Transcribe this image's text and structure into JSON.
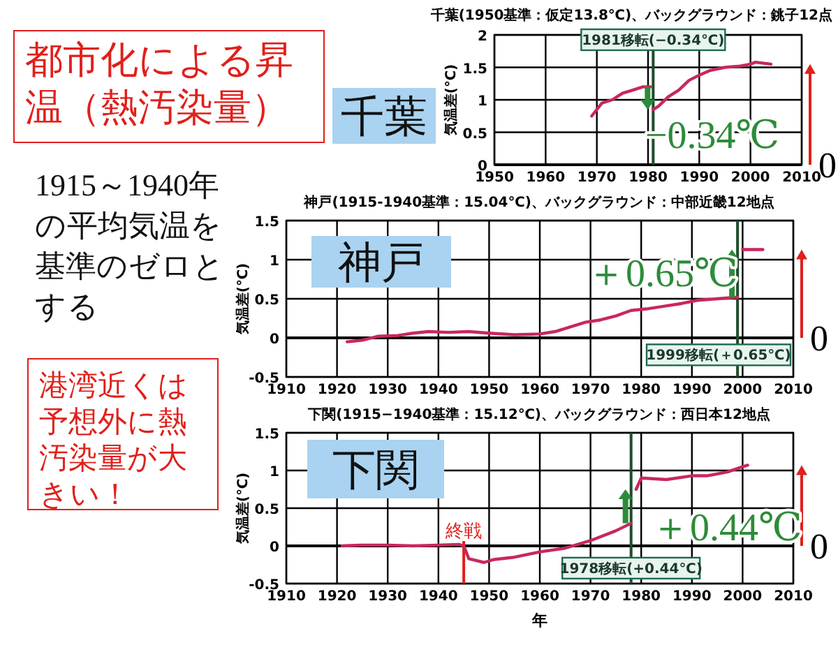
{
  "chart_data": [
    {
      "type": "other",
      "title": "都市化による昇温（熱汚染量）",
      "annotations": [
        "1915～1940年の平均気温を基準のゼロとする",
        "港湾近くは予想外に熱汚染量が大きい！"
      ]
    },
    {
      "type": "line",
      "title": "千葉(1950基準：仮定13.8℃)、バックグラウンド：銚子12点",
      "ylabel": "気温差(℃)",
      "xlim": [
        1950,
        2010
      ],
      "xticks": [
        1950,
        1960,
        1970,
        1980,
        1990,
        2000,
        2010
      ],
      "ylim": [
        0,
        2
      ],
      "yticks": [
        0,
        0.5,
        1,
        1.5,
        2
      ],
      "grid": true,
      "series": [
        {
          "color": "#c8285a",
          "x": [
            1969,
            1970,
            1971,
            1973,
            1975,
            1977,
            1979,
            1980.5,
            1980.8,
            1981,
            1982,
            1984,
            1986,
            1988,
            1990,
            1992,
            1995,
            1998,
            2000,
            2001,
            2004
          ],
          "values": [
            0.75,
            0.85,
            0.95,
            1.0,
            1.1,
            1.15,
            1.2,
            1.2,
            null,
            0.85,
            0.9,
            1.05,
            1.15,
            1.3,
            1.38,
            1.45,
            1.5,
            1.52,
            1.55,
            1.58,
            1.55
          ]
        }
      ],
      "ref_lines": [
        {
          "axis": "x",
          "value": 1981,
          "label": "1981移転(−0.34℃)",
          "color": "#1e4d2b"
        }
      ],
      "annotations": [
        "千葉",
        "−0.34℃",
        "0"
      ]
    },
    {
      "type": "line",
      "title": "神戸(1915-1940基準：15.04℃)、バックグラウンド：中部近畿12地点",
      "ylabel": "気温差(℃)",
      "xlim": [
        1910,
        2010
      ],
      "xticks": [
        1910,
        1920,
        1930,
        1940,
        1950,
        1960,
        1970,
        1980,
        1990,
        2000,
        2010
      ],
      "ylim": [
        -0.5,
        1.5
      ],
      "yticks": [
        -0.5,
        0,
        0.5,
        1,
        1.5
      ],
      "grid": true,
      "series": [
        {
          "color": "#c8285a",
          "x": [
            1922,
            1925,
            1928,
            1932,
            1935,
            1938,
            1942,
            1946,
            1950,
            1955,
            1960,
            1963,
            1966,
            1969,
            1972,
            1975,
            1978,
            1981,
            1985,
            1988,
            1991,
            1995,
            1999,
            1999.5,
            2000,
            2004
          ],
          "values": [
            -0.05,
            -0.03,
            0.02,
            0.03,
            0.06,
            0.08,
            0.07,
            0.08,
            0.06,
            0.04,
            0.05,
            0.08,
            0.14,
            0.2,
            0.23,
            0.28,
            0.35,
            0.37,
            0.41,
            0.44,
            0.48,
            0.5,
            0.52,
            null,
            1.13,
            1.13
          ]
        }
      ],
      "ref_lines": [
        {
          "axis": "x",
          "value": 1999,
          "label": "1999移転(＋0.65℃)",
          "color": "#1e4d2b"
        }
      ],
      "annotations": [
        "神戸",
        "＋0.65℃",
        "0"
      ]
    },
    {
      "type": "line",
      "title": "下関(1915−1940基準：15.12℃)、バックグラウンド：西日本12地点",
      "xlabel": "年",
      "ylabel": "気温差(℃)",
      "xlim": [
        1910,
        2010
      ],
      "xticks": [
        1910,
        1920,
        1930,
        1940,
        1950,
        1960,
        1970,
        1980,
        1990,
        2000,
        2010
      ],
      "ylim": [
        -0.5,
        1.5
      ],
      "yticks": [
        -0.5,
        0,
        0.5,
        1,
        1.5
      ],
      "grid": true,
      "series": [
        {
          "color": "#c8285a",
          "x": [
            1921,
            1925,
            1930,
            1935,
            1940,
            1944,
            1945,
            1946,
            1949,
            1951,
            1955,
            1960,
            1965,
            1970,
            1975,
            1978,
            1978.5,
            1979,
            1980,
            1985,
            1990,
            1993,
            1997,
            2000,
            2001
          ],
          "values": [
            0.0,
            0.01,
            0.01,
            0.0,
            0.01,
            0.02,
            0.0,
            -0.17,
            -0.22,
            -0.18,
            -0.15,
            -0.08,
            -0.03,
            0.07,
            0.2,
            0.3,
            null,
            0.75,
            0.9,
            0.88,
            0.93,
            0.93,
            0.98,
            1.05,
            1.07
          ]
        }
      ],
      "ref_lines": [
        {
          "axis": "x",
          "value": 1978,
          "label": "1978移転(+0.44℃)",
          "color": "#1e4d2b"
        },
        {
          "axis": "x",
          "value": 1945,
          "label": "終戦",
          "color": "#e0201b"
        }
      ],
      "annotations": [
        "下関",
        "＋0.44℃",
        "0"
      ]
    }
  ]
}
